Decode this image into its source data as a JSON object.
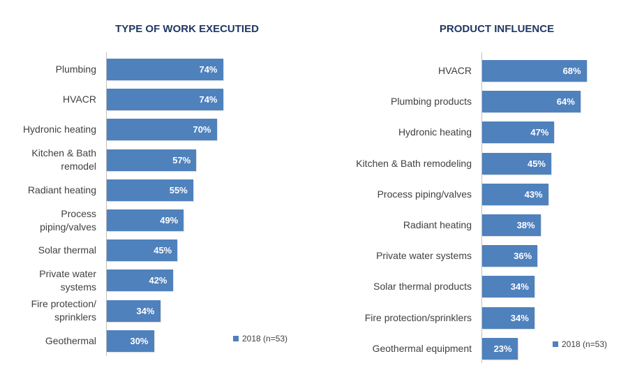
{
  "chart_data": [
    {
      "type": "bar",
      "orientation": "horizontal",
      "title": "TYPE OF WORK EXECUTIED",
      "categories": [
        "Plumbing",
        "HVACR",
        "Hydronic heating",
        "Kitchen & Bath remodel",
        "Radiant heating",
        "Process piping/valves",
        "Solar thermal",
        "Private water systems",
        "Fire protection/ sprinklers",
        "Geothermal"
      ],
      "series": [
        {
          "name": "2018 (n=53)",
          "values": [
            74,
            74,
            70,
            57,
            55,
            49,
            45,
            42,
            34,
            30
          ],
          "labels": [
            "74%",
            "74%",
            "70%",
            "57%",
            "55%",
            "49%",
            "45%",
            "42%",
            "34%",
            "30%"
          ]
        }
      ],
      "legend": {
        "label": "2018 (n=53)",
        "placement": "bottom-right"
      },
      "color": "#4f81bd",
      "grid": false
    },
    {
      "type": "bar",
      "orientation": "horizontal",
      "title": "PRODUCT INFLUENCE",
      "categories": [
        "HVACR",
        "Plumbing products",
        "Hydronic heating",
        "Kitchen & Bath remodeling",
        "Process piping/valves",
        "Radiant heating",
        "Private water systems",
        "Solar thermal products",
        "Fire protection/sprinklers",
        "Geothermal equipment"
      ],
      "series": [
        {
          "name": "2018 (n=53)",
          "values": [
            68,
            64,
            47,
            45,
            43,
            38,
            36,
            34,
            34,
            23
          ],
          "labels": [
            "68%",
            "64%",
            "47%",
            "45%",
            "43%",
            "38%",
            "36%",
            "34%",
            "34%",
            "23%"
          ]
        }
      ],
      "legend": {
        "label": "2018 (n=53)",
        "placement": "bottom-right"
      },
      "color": "#4f81bd",
      "grid": false
    }
  ]
}
